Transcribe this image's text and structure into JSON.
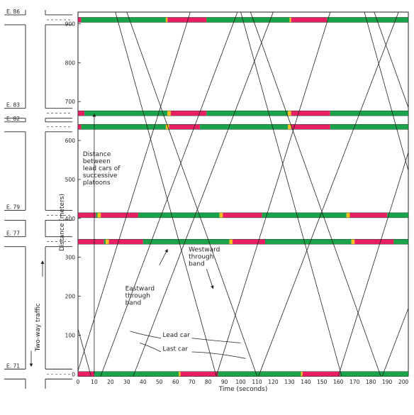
{
  "chart_data": {
    "type": "line",
    "subtype": "time-space-diagram",
    "xlabel": "Time (seconds)",
    "ylabel": "Distance (meters)",
    "xlim": [
      0,
      203
    ],
    "ylim": [
      -5,
      930
    ],
    "x_ticks": [
      0,
      10,
      20,
      30,
      40,
      50,
      60,
      70,
      80,
      90,
      100,
      110,
      120,
      130,
      140,
      150,
      160,
      170,
      180,
      190,
      200
    ],
    "y_ticks": [
      0,
      100,
      200,
      300,
      400,
      500,
      600,
      700,
      800,
      900
    ],
    "colors": {
      "green": "#1aa34a",
      "red": "#ea1f63",
      "yellow": "#f6c11a",
      "line": "#222222"
    },
    "signals": [
      {
        "distance": 910,
        "phases": [
          [
            "red",
            0,
            2
          ],
          [
            "green",
            2,
            54
          ],
          [
            "yellow",
            54,
            55
          ],
          [
            "red",
            55,
            79
          ],
          [
            "green",
            79,
            130
          ],
          [
            "yellow",
            130,
            131
          ],
          [
            "red",
            131,
            153
          ],
          [
            "green",
            153,
            203
          ]
        ]
      },
      {
        "distance": 670,
        "phases": [
          [
            "red",
            0,
            4
          ],
          [
            "green",
            4,
            55
          ],
          [
            "yellow",
            55,
            57
          ],
          [
            "red",
            57,
            79
          ],
          [
            "green",
            79,
            129
          ],
          [
            "yellow",
            129,
            131
          ],
          [
            "red",
            131,
            155
          ],
          [
            "green",
            155,
            203
          ]
        ]
      },
      {
        "distance": 635,
        "phases": [
          [
            "red",
            0,
            2
          ],
          [
            "green",
            2,
            54
          ],
          [
            "yellow",
            54,
            56
          ],
          [
            "red",
            56,
            75
          ],
          [
            "green",
            75,
            129
          ],
          [
            "yellow",
            129,
            131
          ],
          [
            "red",
            131,
            155
          ],
          [
            "green",
            155,
            203
          ]
        ]
      },
      {
        "distance": 408,
        "phases": [
          [
            "red",
            0,
            11
          ],
          [
            "green",
            11,
            12
          ],
          [
            "yellow",
            12,
            14
          ],
          [
            "red",
            14,
            37
          ],
          [
            "green",
            37,
            87
          ],
          [
            "yellow",
            87,
            89
          ],
          [
            "red",
            89,
            113
          ],
          [
            "green",
            113,
            165
          ],
          [
            "yellow",
            165,
            167
          ],
          [
            "red",
            167,
            190
          ],
          [
            "green",
            190,
            203
          ]
        ]
      },
      {
        "distance": 340,
        "phases": [
          [
            "red",
            0,
            16
          ],
          [
            "green",
            16,
            17
          ],
          [
            "yellow",
            17,
            19
          ],
          [
            "red",
            19,
            40
          ],
          [
            "green",
            40,
            93
          ],
          [
            "yellow",
            93,
            95
          ],
          [
            "red",
            95,
            115
          ],
          [
            "green",
            115,
            168
          ],
          [
            "yellow",
            168,
            170
          ],
          [
            "red",
            170,
            194
          ],
          [
            "green",
            194,
            203
          ]
        ]
      },
      {
        "distance": 0,
        "phases": [
          [
            "red",
            0,
            10
          ],
          [
            "green",
            10,
            62
          ],
          [
            "yellow",
            62,
            63
          ],
          [
            "red",
            63,
            86
          ],
          [
            "green",
            86,
            137
          ],
          [
            "yellow",
            137,
            138
          ],
          [
            "red",
            138,
            161
          ],
          [
            "green",
            161,
            203
          ]
        ]
      }
    ],
    "trajectories": [
      {
        "direction": "eastward",
        "points": [
          [
            -1,
            -5
          ],
          [
            69,
            930
          ]
        ]
      },
      {
        "direction": "eastward",
        "points": [
          [
            14,
            -5
          ],
          [
            98,
            930
          ]
        ]
      },
      {
        "direction": "eastward",
        "points": [
          [
            34,
            -5
          ],
          [
            120,
            930
          ]
        ]
      },
      {
        "direction": "eastward",
        "points": [
          [
            85,
            -5
          ],
          [
            155,
            930
          ]
        ]
      },
      {
        "direction": "eastward",
        "points": [
          [
            111,
            -5
          ],
          [
            197,
            930
          ]
        ]
      },
      {
        "direction": "eastward",
        "points": [
          [
            160,
            -5
          ],
          [
            230,
            930
          ]
        ]
      },
      {
        "direction": "eastward",
        "points": [
          [
            187,
            -5
          ],
          [
            273,
            930
          ]
        ]
      },
      {
        "direction": "westward",
        "points": [
          [
            23,
            930
          ],
          [
            85,
            -5
          ]
        ]
      },
      {
        "direction": "westward",
        "points": [
          [
            30,
            930
          ],
          [
            110,
            -5
          ]
        ]
      },
      {
        "direction": "westward",
        "points": [
          [
            100,
            930
          ],
          [
            162,
            -5
          ]
        ]
      },
      {
        "direction": "westward",
        "points": [
          [
            106,
            930
          ],
          [
            186,
            -5
          ]
        ]
      },
      {
        "direction": "westward",
        "points": [
          [
            176,
            930
          ],
          [
            238,
            -5
          ]
        ]
      },
      {
        "direction": "westward",
        "points": [
          [
            182,
            930
          ],
          [
            262,
            -5
          ]
        ]
      },
      {
        "direction": "westward",
        "points": [
          [
            -54,
            930
          ],
          [
            8,
            -5
          ]
        ]
      }
    ],
    "vertical_marker": {
      "x": 10,
      "y_from": 0,
      "y_to": 668
    },
    "annotations": [
      {
        "lines": [
          "Distance",
          "between",
          "lead cars of",
          "successive",
          "platoons"
        ],
        "x": 3,
        "y": 560
      },
      {
        "lines": [
          "Westward",
          "through",
          "band"
        ],
        "x": 68,
        "y": 315
      },
      {
        "lines": [
          "Eastward",
          "through",
          "band"
        ],
        "x": 29,
        "y": 215
      },
      {
        "lines": [
          "Lead car"
        ],
        "x": 52,
        "y": 95
      },
      {
        "lines": [
          "Last car"
        ],
        "x": 52,
        "y": 60
      }
    ],
    "street_labels": [
      {
        "label": "E. 86",
        "distance": 910
      },
      {
        "label": "E. 83",
        "distance": 670
      },
      {
        "label": "E. 82",
        "distance": 635
      },
      {
        "label": "E. 79",
        "distance": 408
      },
      {
        "label": "E. 77",
        "distance": 340
      },
      {
        "label": "E. 71",
        "distance": 0
      }
    ],
    "traffic_label": "Two-way traffic"
  }
}
